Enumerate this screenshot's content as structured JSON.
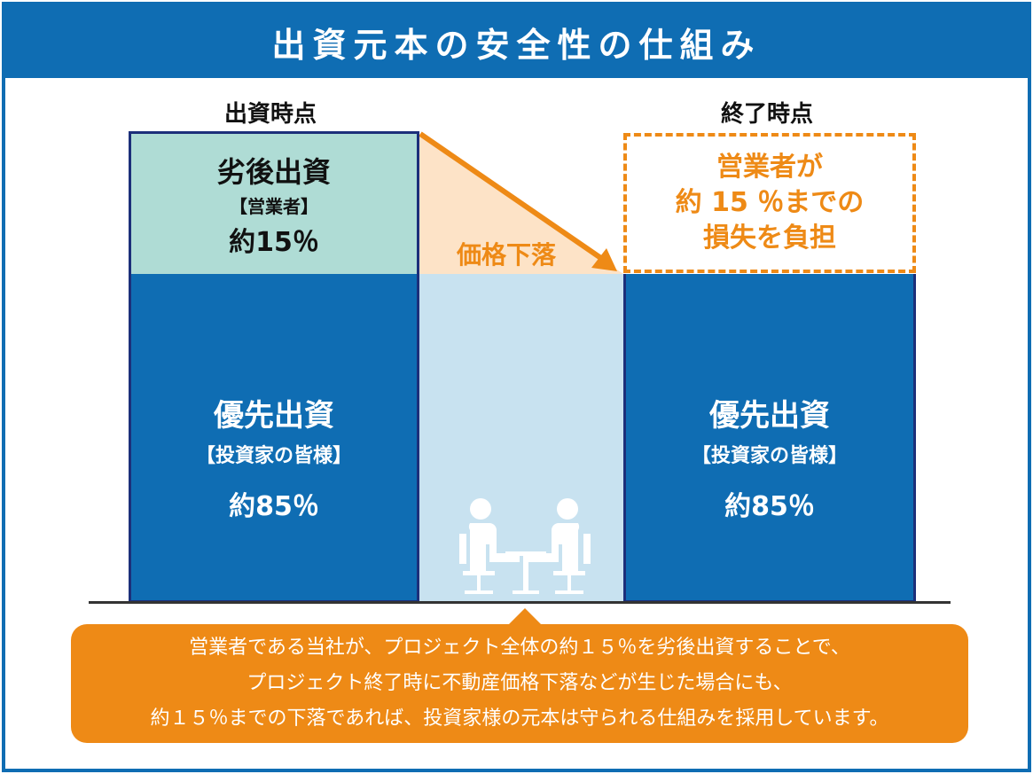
{
  "header": {
    "title": "出資元本の安全性の仕組み"
  },
  "left": {
    "label": "出資時点",
    "subordinate": {
      "title": "劣後出資",
      "holder": "【営業者】",
      "share": "約15％"
    },
    "priority": {
      "title": "優先出資",
      "holder": "【投資家の皆様】",
      "share": "約85％"
    }
  },
  "middle": {
    "drop_label": "価格下落"
  },
  "right": {
    "label": "終了時点",
    "loss": {
      "line1": "営業者が",
      "line2": "約 15 ％までの",
      "line3": "損失を負担"
    },
    "priority": {
      "title": "優先出資",
      "holder": "【投資家の皆様】",
      "share": "約85％"
    }
  },
  "note": {
    "line1": "営業者である当社が、プロジェクト全体の約１５％を劣後出資することで、",
    "line2": "プロジェクト終了時に不動産価格下落などが生じた場合にも、",
    "line3": "約１５％までの下落であれば、投資家様の元本は守られる仕組みを採用しています。"
  },
  "colors": {
    "blue": "#0f6db3",
    "navy": "#1c2f7a",
    "teal": "#afdcd5",
    "orange": "#ee8a16",
    "light_blue": "#c8e2f0",
    "peach": "#fde3c7"
  },
  "icons": {
    "meeting": "people-meeting-icon",
    "arrow": "drop-arrow-icon"
  }
}
